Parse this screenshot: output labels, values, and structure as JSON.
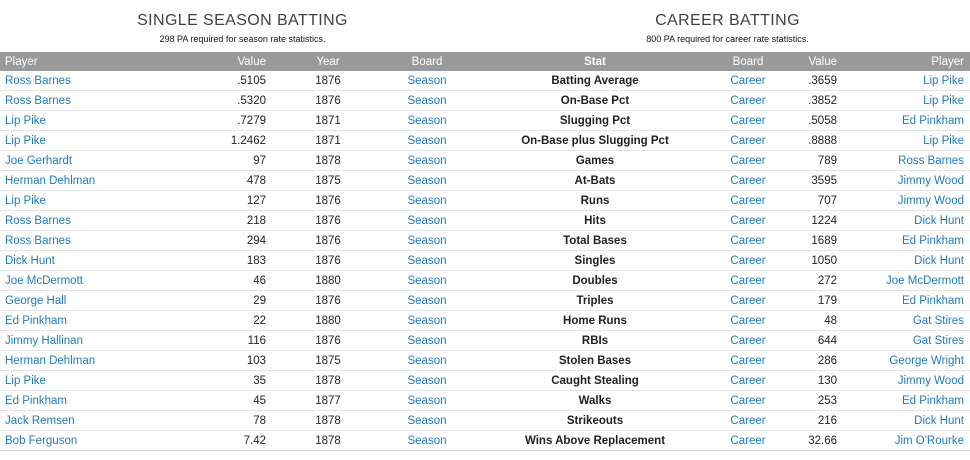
{
  "colors": {
    "link_blue": "#1e7bbf",
    "header_bg": "#9a9a9a"
  },
  "left": {
    "title": "SINGLE SEASON BATTING",
    "subtitle": "298 PA required for season rate statistics.",
    "headers": {
      "player": "Player",
      "value": "Value",
      "year": "Year",
      "board": "Board"
    }
  },
  "right": {
    "title": "CAREER BATTING",
    "subtitle": "800 PA required for career rate statistics.",
    "headers": {
      "board": "Board",
      "value": "Value",
      "player": "Player"
    }
  },
  "stat_header": "Stat",
  "rows": [
    {
      "s_player": "Ross Barnes",
      "s_value": ".5105",
      "s_year": "1876",
      "s_board": "Season",
      "stat": "Batting Average",
      "c_board": "Career",
      "c_value": ".3659",
      "c_player": "Lip Pike"
    },
    {
      "s_player": "Ross Barnes",
      "s_value": ".5320",
      "s_year": "1876",
      "s_board": "Season",
      "stat": "On-Base Pct",
      "c_board": "Career",
      "c_value": ".3852",
      "c_player": "Lip Pike"
    },
    {
      "s_player": "Lip Pike",
      "s_value": ".7279",
      "s_year": "1871",
      "s_board": "Season",
      "stat": "Slugging Pct",
      "c_board": "Career",
      "c_value": ".5058",
      "c_player": "Ed Pinkham"
    },
    {
      "s_player": "Lip Pike",
      "s_value": "1.2462",
      "s_year": "1871",
      "s_board": "Season",
      "stat": "On-Base plus Slugging Pct",
      "c_board": "Career",
      "c_value": ".8888",
      "c_player": "Lip Pike"
    },
    {
      "s_player": "Joe Gerhardt",
      "s_value": "97",
      "s_year": "1878",
      "s_board": "Season",
      "stat": "Games",
      "c_board": "Career",
      "c_value": "789",
      "c_player": "Ross Barnes"
    },
    {
      "s_player": "Herman Dehlman",
      "s_value": "478",
      "s_year": "1875",
      "s_board": "Season",
      "stat": "At-Bats",
      "c_board": "Career",
      "c_value": "3595",
      "c_player": "Jimmy Wood"
    },
    {
      "s_player": "Lip Pike",
      "s_value": "127",
      "s_year": "1876",
      "s_board": "Season",
      "stat": "Runs",
      "c_board": "Career",
      "c_value": "707",
      "c_player": "Jimmy Wood"
    },
    {
      "s_player": "Ross Barnes",
      "s_value": "218",
      "s_year": "1876",
      "s_board": "Season",
      "stat": "Hits",
      "c_board": "Career",
      "c_value": "1224",
      "c_player": "Dick Hunt"
    },
    {
      "s_player": "Ross Barnes",
      "s_value": "294",
      "s_year": "1876",
      "s_board": "Season",
      "stat": "Total Bases",
      "c_board": "Career",
      "c_value": "1689",
      "c_player": "Ed Pinkham"
    },
    {
      "s_player": "Dick Hunt",
      "s_value": "183",
      "s_year": "1876",
      "s_board": "Season",
      "stat": "Singles",
      "c_board": "Career",
      "c_value": "1050",
      "c_player": "Dick Hunt"
    },
    {
      "s_player": "Joe McDermott",
      "s_value": "46",
      "s_year": "1880",
      "s_board": "Season",
      "stat": "Doubles",
      "c_board": "Career",
      "c_value": "272",
      "c_player": "Joe McDermott"
    },
    {
      "s_player": "George Hall",
      "s_value": "29",
      "s_year": "1876",
      "s_board": "Season",
      "stat": "Triples",
      "c_board": "Career",
      "c_value": "179",
      "c_player": "Ed Pinkham"
    },
    {
      "s_player": "Ed Pinkham",
      "s_value": "22",
      "s_year": "1880",
      "s_board": "Season",
      "stat": "Home Runs",
      "c_board": "Career",
      "c_value": "48",
      "c_player": "Gat Stires"
    },
    {
      "s_player": "Jimmy Hallinan",
      "s_value": "116",
      "s_year": "1876",
      "s_board": "Season",
      "stat": "RBIs",
      "c_board": "Career",
      "c_value": "644",
      "c_player": "Gat Stires"
    },
    {
      "s_player": "Herman Dehlman",
      "s_value": "103",
      "s_year": "1875",
      "s_board": "Season",
      "stat": "Stolen Bases",
      "c_board": "Career",
      "c_value": "286",
      "c_player": "George Wright"
    },
    {
      "s_player": "Lip Pike",
      "s_value": "35",
      "s_year": "1878",
      "s_board": "Season",
      "stat": "Caught Stealing",
      "c_board": "Career",
      "c_value": "130",
      "c_player": "Jimmy Wood"
    },
    {
      "s_player": "Ed Pinkham",
      "s_value": "45",
      "s_year": "1877",
      "s_board": "Season",
      "stat": "Walks",
      "c_board": "Career",
      "c_value": "253",
      "c_player": "Ed Pinkham"
    },
    {
      "s_player": "Jack Remsen",
      "s_value": "78",
      "s_year": "1878",
      "s_board": "Season",
      "stat": "Strikeouts",
      "c_board": "Career",
      "c_value": "216",
      "c_player": "Dick Hunt"
    },
    {
      "s_player": "Bob Ferguson",
      "s_value": "7.42",
      "s_year": "1878",
      "s_board": "Season",
      "stat": "Wins Above Replacement",
      "c_board": "Career",
      "c_value": "32.66",
      "c_player": "Jim O'Rourke"
    }
  ]
}
